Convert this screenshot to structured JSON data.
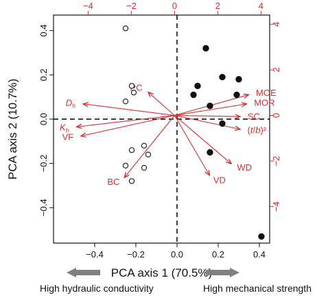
{
  "chart_data": {
    "type": "biplot",
    "xlabel": "PCA axis 1 (70.5%)",
    "ylabel": "PCA axis 2 (10.7%)",
    "x_ticks": [
      -0.4,
      -0.2,
      0.0,
      0.2,
      0.4
    ],
    "x_tick_labels": [
      "−0.4",
      "−0.2",
      "0.0",
      "0.2",
      "0.4"
    ],
    "y_ticks": [
      -0.4,
      -0.2,
      0.0,
      0.2,
      0.4
    ],
    "y_tick_labels": [
      "−0.4",
      "−0.2",
      "0.0",
      "0.2",
      "0.4"
    ],
    "xlim": [
      -0.6,
      0.45
    ],
    "ylim": [
      -0.56,
      0.47
    ],
    "loading_ticks": [
      -4,
      -2,
      0,
      2,
      4
    ],
    "loading_tick_labels": [
      "−4",
      "−2",
      "0",
      "2",
      "4"
    ],
    "loading_range": [
      -5.6,
      4.4
    ],
    "open_points": [
      {
        "x": -0.25,
        "y": 0.41
      },
      {
        "x": -0.25,
        "y": 0.08
      },
      {
        "x": -0.22,
        "y": 0.15
      },
      {
        "x": -0.21,
        "y": 0.12
      },
      {
        "x": -0.16,
        "y": -0.12
      },
      {
        "x": -0.14,
        "y": -0.16
      },
      {
        "x": -0.22,
        "y": -0.14
      },
      {
        "x": -0.25,
        "y": -0.21
      },
      {
        "x": -0.16,
        "y": -0.22
      },
      {
        "x": -0.22,
        "y": -0.28
      }
    ],
    "filled_points": [
      {
        "x": 0.14,
        "y": 0.32
      },
      {
        "x": 0.22,
        "y": 0.19
      },
      {
        "x": 0.3,
        "y": 0.18
      },
      {
        "x": 0.1,
        "y": 0.15
      },
      {
        "x": 0.08,
        "y": 0.11
      },
      {
        "x": 0.29,
        "y": 0.11
      },
      {
        "x": 0.16,
        "y": 0.06
      },
      {
        "x": 0.22,
        "y": -0.02
      },
      {
        "x": 0.16,
        "y": -0.15
      },
      {
        "x": 0.41,
        "y": -0.53
      }
    ],
    "loadings": [
      {
        "label": "PC",
        "x": -1.2,
        "y": 1.0
      },
      {
        "label": "Dh",
        "x": -4.2,
        "y": 0.5
      },
      {
        "label": "Kh",
        "x": -4.5,
        "y": -0.5
      },
      {
        "label": "VF",
        "x": -4.3,
        "y": -0.9
      },
      {
        "label": "BC",
        "x": -2.3,
        "y": -2.7
      },
      {
        "label": "MOE",
        "x": 3.4,
        "y": 0.9
      },
      {
        "label": "MOR",
        "x": 3.3,
        "y": 0.5
      },
      {
        "label": "SC",
        "x": 3.0,
        "y": -0.05
      },
      {
        "label": "(t/b)²",
        "x": 3.0,
        "y": -0.6
      },
      {
        "label": "WD",
        "x": 2.6,
        "y": -2.1
      },
      {
        "label": "VD",
        "x": 1.6,
        "y": -2.6
      }
    ],
    "bottom_labels": {
      "left": "High hydraulic conductivity",
      "right": "High mechanical strength"
    },
    "colors": {
      "loadings": "#d32f2f",
      "points": "#111111",
      "arrow_bar": "#808080"
    }
  }
}
